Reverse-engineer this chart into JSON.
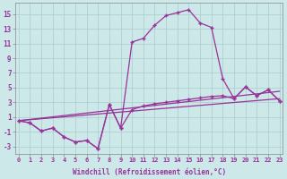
{
  "xlabel": "Windchill (Refroidissement éolien,°C)",
  "background_color": "#cce8e8",
  "line_color": "#993399",
  "grid_color": "#aacccc",
  "xlim_min": -0.3,
  "xlim_max": 23.3,
  "ylim_min": -4.0,
  "ylim_max": 16.5,
  "yticks": [
    -3,
    -1,
    1,
    3,
    5,
    7,
    9,
    11,
    13,
    15
  ],
  "xticks": [
    0,
    1,
    2,
    3,
    4,
    5,
    6,
    7,
    8,
    9,
    10,
    11,
    12,
    13,
    14,
    15,
    16,
    17,
    18,
    19,
    20,
    21,
    22,
    23
  ],
  "curve1_x": [
    0,
    1,
    2,
    3,
    4,
    5,
    6,
    7,
    8,
    9,
    10,
    11,
    12,
    13,
    14,
    15,
    16,
    17,
    18,
    19,
    20,
    21,
    22,
    23
  ],
  "curve1_y": [
    0.5,
    0.2,
    -0.9,
    -0.5,
    -1.7,
    -2.4,
    -2.2,
    -3.3,
    2.7,
    -0.5,
    11.2,
    11.7,
    13.5,
    14.8,
    15.2,
    15.6,
    13.8,
    13.2,
    6.2,
    3.5,
    5.1,
    3.9,
    4.7,
    3.2
  ],
  "curve2_x": [
    0,
    1,
    2,
    3,
    4,
    5,
    6,
    7,
    8,
    9,
    10,
    11,
    12,
    13,
    14,
    15,
    16,
    17,
    18,
    19,
    20,
    21,
    22,
    23
  ],
  "curve2_y": [
    0.5,
    0.2,
    -0.9,
    -0.5,
    -1.7,
    -2.4,
    -2.2,
    -3.3,
    2.7,
    -0.5,
    2.0,
    2.5,
    2.8,
    3.0,
    3.2,
    3.4,
    3.6,
    3.8,
    3.9,
    3.5,
    5.1,
    3.9,
    4.7,
    3.2
  ],
  "line3_x": [
    0,
    23
  ],
  "line3_y": [
    0.5,
    3.5
  ],
  "line4_x": [
    0,
    23
  ],
  "line4_y": [
    0.5,
    4.5
  ]
}
